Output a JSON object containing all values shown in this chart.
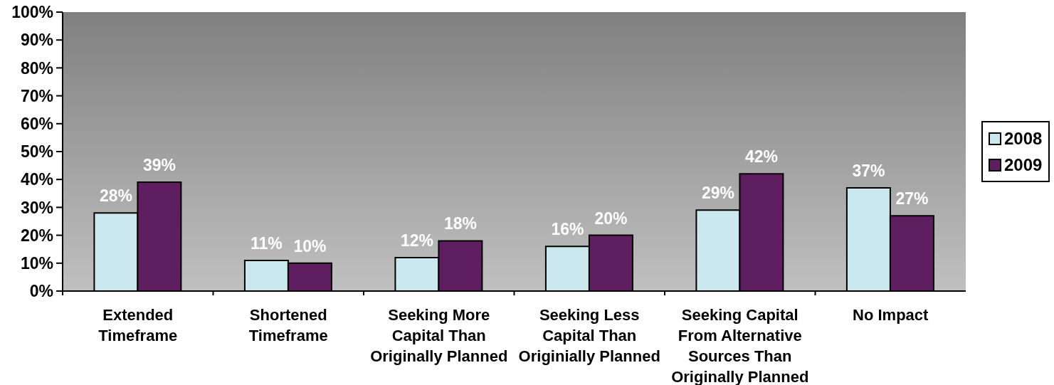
{
  "chart_data": {
    "type": "bar",
    "categories": [
      "Extended Timeframe",
      "Shortened Timeframe",
      "Seeking More Capital Than Originally Planned",
      "Seeking Less Capital Than Originially Planned",
      "Seeking Capital From Alternative Sources Than Originally Planned",
      "No Impact"
    ],
    "series": [
      {
        "name": "2008",
        "color": "#cce8ef",
        "values": [
          28,
          11,
          12,
          16,
          29,
          37
        ],
        "value_labels": [
          "28%",
          "11%",
          "12%",
          "16%",
          "29%",
          "37%"
        ]
      },
      {
        "name": "2009",
        "color": "#5f1e5f",
        "values": [
          39,
          10,
          18,
          20,
          42,
          27
        ],
        "value_labels": [
          "39%",
          "10%",
          "18%",
          "20%",
          "42%",
          "27%"
        ]
      }
    ],
    "ylim": [
      0,
      100
    ],
    "yticks": [
      {
        "value": 0,
        "label": "0%"
      },
      {
        "value": 10,
        "label": "10%"
      },
      {
        "value": 20,
        "label": "20%"
      },
      {
        "value": 30,
        "label": "30%"
      },
      {
        "value": 40,
        "label": "40%"
      },
      {
        "value": 50,
        "label": "50%"
      },
      {
        "value": 60,
        "label": "60%"
      },
      {
        "value": 70,
        "label": "70%"
      },
      {
        "value": 80,
        "label": "80%"
      },
      {
        "value": 90,
        "label": "90%"
      },
      {
        "value": 100,
        "label": "100%"
      }
    ],
    "legend": "right"
  }
}
